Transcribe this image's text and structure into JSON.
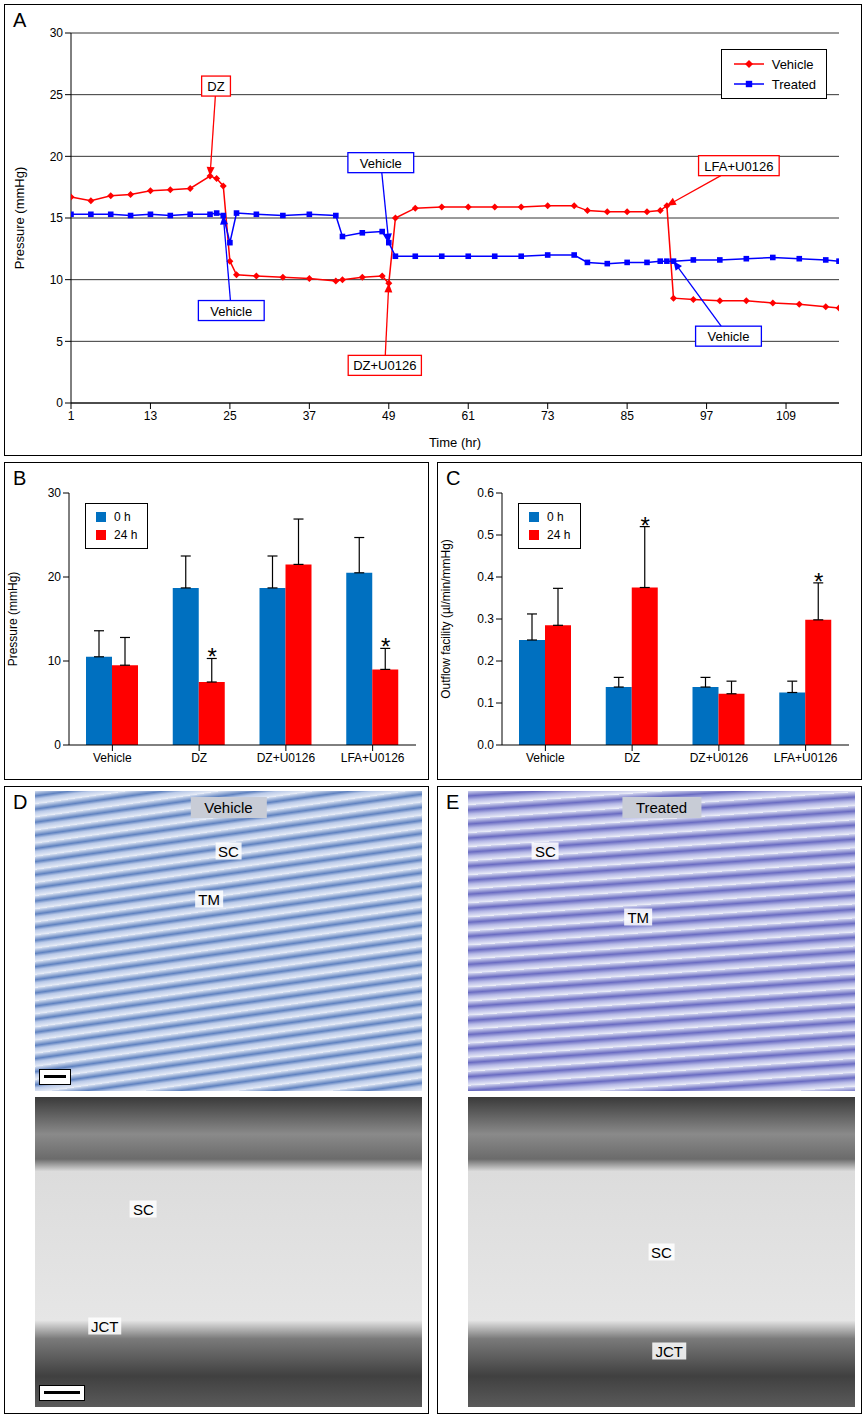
{
  "chart_data": [
    {
      "panel_label": "A",
      "type": "line",
      "x_label": "Time (hr)",
      "y_label": "Pressure (mmHg)",
      "x": [
        1,
        4,
        7,
        10,
        13,
        16,
        19,
        22,
        23,
        24,
        25,
        26,
        29,
        33,
        37,
        41,
        42,
        45,
        48,
        49,
        50,
        53,
        57,
        61,
        65,
        69,
        73,
        77,
        79,
        82,
        85,
        88,
        90,
        91,
        92,
        95,
        99,
        103,
        107,
        111,
        115,
        117
      ],
      "series": [
        {
          "name": "Vehicle",
          "color": "#ff0000",
          "marker": "diamond",
          "values": [
            16.7,
            16.4,
            16.8,
            16.9,
            17.2,
            17.3,
            17.4,
            18.4,
            18.2,
            17.6,
            11.5,
            10.4,
            10.3,
            10.2,
            10.1,
            9.9,
            10.0,
            10.2,
            10.3,
            9.7,
            15.0,
            15.8,
            15.9,
            15.9,
            15.9,
            15.9,
            16.0,
            16.0,
            15.6,
            15.5,
            15.5,
            15.5,
            15.6,
            16.0,
            8.5,
            8.4,
            8.3,
            8.3,
            8.1,
            8.0,
            7.8,
            7.7
          ]
        },
        {
          "name": "Treated",
          "color": "#0000ff",
          "marker": "square",
          "values": [
            15.3,
            15.3,
            15.3,
            15.2,
            15.3,
            15.2,
            15.3,
            15.3,
            15.4,
            15.2,
            13.0,
            15.4,
            15.3,
            15.2,
            15.3,
            15.2,
            13.5,
            13.8,
            13.9,
            13.0,
            11.9,
            11.9,
            11.9,
            11.9,
            11.9,
            11.9,
            12.0,
            12.0,
            11.4,
            11.3,
            11.4,
            11.4,
            11.5,
            11.5,
            11.5,
            11.6,
            11.6,
            11.7,
            11.8,
            11.7,
            11.6,
            11.5
          ]
        }
      ],
      "xlim": [
        1,
        117
      ],
      "xticks": [
        1,
        13,
        25,
        37,
        49,
        61,
        73,
        85,
        97,
        109
      ],
      "ylim": [
        0,
        30
      ],
      "yticks": [
        0,
        5,
        10,
        15,
        20,
        25,
        30
      ],
      "grid": true,
      "legend": "top right",
      "annotations": [
        {
          "text": "DZ",
          "color": "#ff0000",
          "x": 22,
          "y": 18.4
        },
        {
          "text": "Vehicle",
          "color": "#0000ff",
          "x": 24,
          "y": 15.2
        },
        {
          "text": "Vehicle",
          "color": "#0000ff",
          "x": 49,
          "y": 13.0
        },
        {
          "text": "DZ+U0126",
          "color": "#ff0000",
          "x": 49,
          "y": 9.7
        },
        {
          "text": "LFA+U0126",
          "color": "#ff0000",
          "x": 91,
          "y": 16.0
        },
        {
          "text": "Vehicle",
          "color": "#0000ff",
          "x": 92,
          "y": 11.5
        }
      ]
    },
    {
      "panel_label": "B",
      "type": "bar",
      "y_label": "Pressure (mmHg)",
      "categories": [
        "Vehicle",
        "DZ",
        "DZ+U0126",
        "LFA+U0126"
      ],
      "series": [
        {
          "name": "0 h",
          "color": "#0070c0",
          "values": [
            10.5,
            18.7,
            18.7,
            20.5
          ],
          "errors": [
            3.1,
            3.8,
            3.8,
            4.2
          ]
        },
        {
          "name": "24 h",
          "color": "#ff0000",
          "values": [
            9.5,
            7.5,
            21.5,
            9.0
          ],
          "errors": [
            3.3,
            2.8,
            5.4,
            2.5
          ]
        }
      ],
      "ylim": [
        0,
        30
      ],
      "yticks": [
        0,
        10,
        20,
        30
      ],
      "grid": false,
      "legend": "top left",
      "annotations": [
        {
          "text": "*",
          "category": "DZ",
          "series": "24 h"
        },
        {
          "text": "*",
          "category": "LFA+U0126",
          "series": "24 h"
        }
      ]
    },
    {
      "panel_label": "C",
      "type": "bar",
      "y_label": "Outflow facility (µl/min/mmHg)",
      "categories": [
        "Vehicle",
        "DZ",
        "DZ+U0126",
        "LFA+U0126"
      ],
      "series": [
        {
          "name": "0 h",
          "color": "#0070c0",
          "values": [
            0.25,
            0.138,
            0.138,
            0.125
          ],
          "errors": [
            0.062,
            0.023,
            0.023,
            0.027
          ]
        },
        {
          "name": "24 h",
          "color": "#ff0000",
          "values": [
            0.285,
            0.375,
            0.122,
            0.298
          ],
          "errors": [
            0.088,
            0.145,
            0.03,
            0.088
          ]
        }
      ],
      "ylim": [
        0,
        0.6
      ],
      "yticks": [
        {
          "value": 0,
          "label": "0.0"
        },
        0.1,
        0.2,
        0.3,
        0.4,
        0.5,
        0.6
      ],
      "grid": false,
      "legend": "top left",
      "annotations": [
        {
          "text": "*",
          "category": "DZ",
          "series": "24 h"
        },
        {
          "text": "*",
          "category": "LFA+U0126",
          "series": "24 h"
        }
      ]
    }
  ],
  "micrographs": [
    {
      "panel_label": "D",
      "title": "Vehicle",
      "upper_labels": [
        "SC",
        "TM"
      ],
      "lower_labels": [
        "SC",
        "JCT"
      ]
    },
    {
      "panel_label": "E",
      "title": "Treated",
      "upper_labels": [
        "SC",
        "TM"
      ],
      "lower_labels": [
        "SC",
        "JCT"
      ]
    }
  ]
}
